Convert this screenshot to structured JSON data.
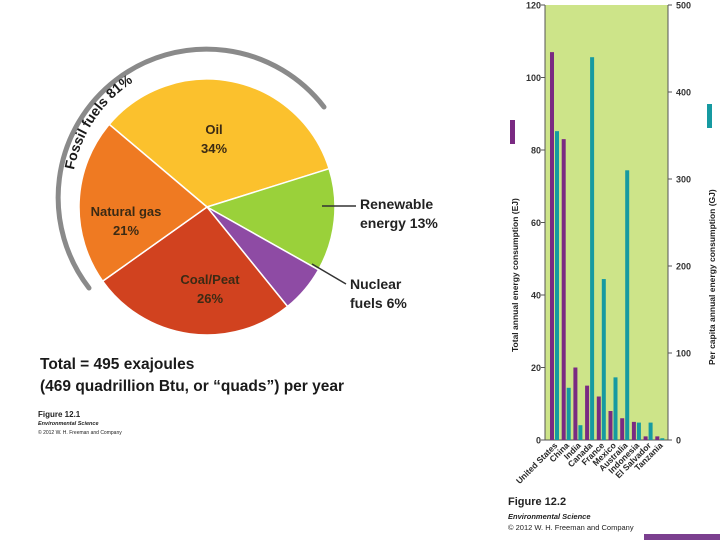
{
  "chart_data": [
    {
      "type": "pie",
      "title": "Total = 495 exajoules",
      "subtitle": "(469 quadrillion Btu, or “quads”) per year",
      "slices": [
        {
          "label": "Oil",
          "value": 34,
          "value_label": "34%",
          "color": "#fbc12d"
        },
        {
          "label": "Renewable energy",
          "value": 13,
          "value_label": "13%",
          "color": "#9ad13a"
        },
        {
          "label": "Nuclear fuels",
          "value": 6,
          "value_label": "6%",
          "color": "#8e4ba4"
        },
        {
          "label": "Coal/Peat",
          "value": 26,
          "value_label": "26%",
          "color": "#d1421f"
        },
        {
          "label": "Natural gas",
          "value": 21,
          "value_label": "21%",
          "color": "#ef7a22"
        }
      ],
      "annotations": {
        "renewable_line1": "Renewable",
        "renewable_line2": "energy 13%",
        "nuclear_line1": "Nuclear",
        "nuclear_line2": "fuels 6%",
        "fossil_arc": "Fossil fuels 81%"
      }
    },
    {
      "type": "bar",
      "categories": [
        "United States",
        "China",
        "India",
        "Canada",
        "France",
        "Mexico",
        "Australia",
        "Indonesia",
        "El Salvador",
        "Tanzania"
      ],
      "series": [
        {
          "name": "Total annual energy consumption (EJ)",
          "axis": "left",
          "color": "#7a2a82",
          "values": [
            107,
            83,
            20,
            15,
            12,
            8,
            6,
            5,
            1,
            1
          ]
        },
        {
          "name": "Per capita annual energy consumption (GJ)",
          "axis": "right",
          "color": "#169aa1",
          "values": [
            355,
            60,
            17,
            440,
            185,
            72,
            310,
            20,
            20,
            2
          ]
        }
      ],
      "ylabel_left": "Total annual energy consumption (EJ)",
      "ylabel_right": "Per capita annual energy consumption (GJ)",
      "ylim_left": [
        0,
        120
      ],
      "ylim_right": [
        0,
        500
      ],
      "yticks_left": [
        "0",
        "20",
        "40",
        "60",
        "80",
        "100",
        "120"
      ],
      "yticks_right": [
        "0",
        "100",
        "200",
        "300",
        "400",
        "500"
      ],
      "background": "#cde489"
    }
  ],
  "captions": {
    "fig1": {
      "title": "Figure 12.1",
      "subtitle": "Environmental Science",
      "copyright": "© 2012 W. H. Freeman and Company"
    },
    "fig2": {
      "title": "Figure 12.2",
      "subtitle": "Environmental Science",
      "copyright": "© 2012 W. H. Freeman and Company"
    }
  }
}
